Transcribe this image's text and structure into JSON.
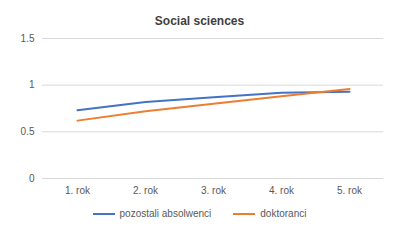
{
  "chart_data": {
    "type": "line",
    "title": "Social sciences",
    "categories": [
      "1. rok",
      "2. rok",
      "3. rok",
      "4. rok",
      "5. rok"
    ],
    "series": [
      {
        "name": "pozostali absolwenci",
        "color": "#4472c4",
        "values": [
          0.73,
          0.82,
          0.87,
          0.92,
          0.93
        ]
      },
      {
        "name": "doktoranci",
        "color": "#ed7d31",
        "values": [
          0.62,
          0.72,
          0.8,
          0.88,
          0.96
        ]
      }
    ],
    "ylim": [
      0,
      1.5
    ],
    "yticks": [
      0,
      0.5,
      1,
      1.5
    ],
    "grid": true,
    "legend": "bottom"
  }
}
